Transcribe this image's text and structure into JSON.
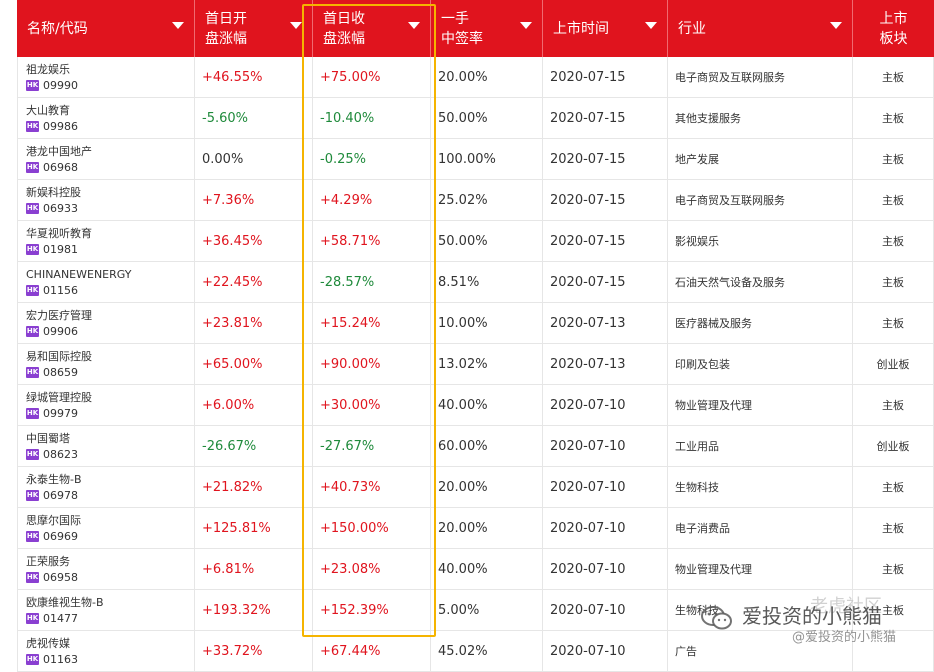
{
  "header": {
    "columns": [
      {
        "label": "名称/代码",
        "sortable": true
      },
      {
        "label": "首日开\n盘涨幅",
        "sortable": true
      },
      {
        "label": "首日收\n盘涨幅",
        "sortable": true
      },
      {
        "label": "一手\n中签率",
        "sortable": true
      },
      {
        "label": "上市时间",
        "sortable": true
      },
      {
        "label": "行业",
        "sortable": true
      },
      {
        "label": "上市\n板块",
        "sortable": false
      }
    ]
  },
  "badge_label": "HK",
  "rows": [
    {
      "name": "祖龙娱乐",
      "code": "09990",
      "open": "+46.55%",
      "close": "+75.00%",
      "rate": "20.00%",
      "date": "2020-07-15",
      "industry": "电子商贸及互联网服务",
      "board": "主板"
    },
    {
      "name": "大山教育",
      "code": "09986",
      "open": "-5.60%",
      "close": "-10.40%",
      "rate": "50.00%",
      "date": "2020-07-15",
      "industry": "其他支援服务",
      "board": "主板"
    },
    {
      "name": "港龙中国地产",
      "code": "06968",
      "open": "0.00%",
      "close": "-0.25%",
      "rate": "100.00%",
      "date": "2020-07-15",
      "industry": "地产发展",
      "board": "主板"
    },
    {
      "name": "新娱科控股",
      "code": "06933",
      "open": "+7.36%",
      "close": "+4.29%",
      "rate": "25.02%",
      "date": "2020-07-15",
      "industry": "电子商贸及互联网服务",
      "board": "主板"
    },
    {
      "name": "华夏视听教育",
      "code": "01981",
      "open": "+36.45%",
      "close": "+58.71%",
      "rate": "50.00%",
      "date": "2020-07-15",
      "industry": "影视娱乐",
      "board": "主板"
    },
    {
      "name": "CHINANEWENERGY",
      "code": "01156",
      "open": "+22.45%",
      "close": "-28.57%",
      "rate": "8.51%",
      "date": "2020-07-15",
      "industry": "石油天然气设备及服务",
      "board": "主板"
    },
    {
      "name": "宏力医疗管理",
      "code": "09906",
      "open": "+23.81%",
      "close": "+15.24%",
      "rate": "10.00%",
      "date": "2020-07-13",
      "industry": "医疗器械及服务",
      "board": "主板"
    },
    {
      "name": "易和国际控股",
      "code": "08659",
      "open": "+65.00%",
      "close": "+90.00%",
      "rate": "13.02%",
      "date": "2020-07-13",
      "industry": "印刷及包装",
      "board": "创业板"
    },
    {
      "name": "绿城管理控股",
      "code": "09979",
      "open": "+6.00%",
      "close": "+30.00%",
      "rate": "40.00%",
      "date": "2020-07-10",
      "industry": "物业管理及代理",
      "board": "主板"
    },
    {
      "name": "中国蜀塔",
      "code": "08623",
      "open": "-26.67%",
      "close": "-27.67%",
      "rate": "60.00%",
      "date": "2020-07-10",
      "industry": "工业用品",
      "board": "创业板"
    },
    {
      "name": "永泰生物-B",
      "code": "06978",
      "open": "+21.82%",
      "close": "+40.73%",
      "rate": "20.00%",
      "date": "2020-07-10",
      "industry": "生物科技",
      "board": "主板"
    },
    {
      "name": "思摩尔国际",
      "code": "06969",
      "open": "+125.81%",
      "close": "+150.00%",
      "rate": "20.00%",
      "date": "2020-07-10",
      "industry": "电子消费品",
      "board": "主板"
    },
    {
      "name": "正荣服务",
      "code": "06958",
      "open": "+6.81%",
      "close": "+23.08%",
      "rate": "40.00%",
      "date": "2020-07-10",
      "industry": "物业管理及代理",
      "board": "主板"
    },
    {
      "name": "欧康维视生物-B",
      "code": "01477",
      "open": "+193.32%",
      "close": "+152.39%",
      "rate": "5.00%",
      "date": "2020-07-10",
      "industry": "生物科技",
      "board": "主板"
    },
    {
      "name": "虎视传媒",
      "code": "01163",
      "open": "+33.72%",
      "close": "+67.44%",
      "rate": "45.02%",
      "date": "2020-07-10",
      "industry": "广告",
      "board": ""
    }
  ],
  "watermark": {
    "line0": "老虎社区",
    "line1": "爱投资的小熊猫",
    "line2": "@爱投资的小熊猫"
  },
  "colors": {
    "header_bg": "#e0141e",
    "up": "#e0141e",
    "down": "#1f8a3b",
    "highlight": "#f5b400",
    "hk_badge": "#8a3fd1"
  }
}
